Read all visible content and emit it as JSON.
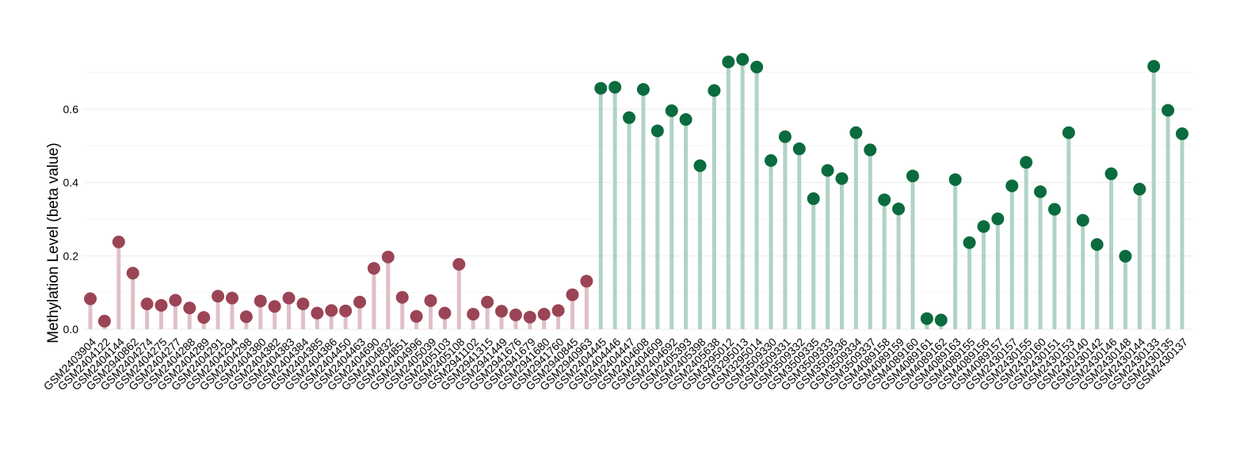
{
  "chart_data": {
    "type": "lollipop",
    "title": "",
    "xlabel": "",
    "ylabel": "Methylation Level (beta value)",
    "ylim": [
      0,
      0.78
    ],
    "yticks": [
      0.0,
      0.2,
      0.4,
      0.6
    ],
    "ytick_labels": [
      "0.0",
      "0.2",
      "0.4",
      "0.6"
    ],
    "grid": "horizontal",
    "legend": "none",
    "colors": {
      "group_a_point": "#9b4455",
      "group_a_stem": "#dfc0c7",
      "group_b_point": "#0a6b3e",
      "group_b_stem": "#b0d3c5"
    },
    "categories": [
      "GSM2403904",
      "GSM2404122",
      "GSM2404144",
      "GSM2940862",
      "GSM2404274",
      "GSM2404275",
      "GSM2404277",
      "GSM2404288",
      "GSM2404289",
      "GSM2404291",
      "GSM2404294",
      "GSM2404298",
      "GSM2404380",
      "GSM2404382",
      "GSM2404383",
      "GSM2404384",
      "GSM2404385",
      "GSM2404386",
      "GSM2404450",
      "GSM2404463",
      "GSM2404690",
      "GSM2404832",
      "GSM2404851",
      "GSM2404996",
      "GSM2405039",
      "GSM2405103",
      "GSM2405108",
      "GSM2941102",
      "GSM2941315",
      "GSM2941449",
      "GSM2941676",
      "GSM2941679",
      "GSM2941680",
      "GSM2941760",
      "GSM2940845",
      "GSM2940963",
      "GSM2404445",
      "GSM2404446",
      "GSM2404447",
      "GSM2404608",
      "GSM2404609",
      "GSM2404692",
      "GSM2405393",
      "GSM2405398",
      "GSM2405638",
      "GSM3295012",
      "GSM3295013",
      "GSM3295014",
      "GSM3509330",
      "GSM3509331",
      "GSM3509332",
      "GSM3509335",
      "GSM3509333",
      "GSM3509336",
      "GSM3509334",
      "GSM3509337",
      "GSM4089158",
      "GSM4089159",
      "GSM4089160",
      "GSM4089161",
      "GSM4089162",
      "GSM4089163",
      "GSM4089155",
      "GSM4089156",
      "GSM4089157",
      "GSM2430157",
      "GSM2430155",
      "GSM2430160",
      "GSM2430151",
      "GSM2430153",
      "GSM2430140",
      "GSM2430142",
      "GSM2430146",
      "GSM2430148",
      "GSM2430144",
      "GSM2430133",
      "GSM2430135",
      "GSM2430137"
    ],
    "groups": [
      "a",
      "a",
      "a",
      "a",
      "a",
      "a",
      "a",
      "a",
      "a",
      "a",
      "a",
      "a",
      "a",
      "a",
      "a",
      "a",
      "a",
      "a",
      "a",
      "a",
      "a",
      "a",
      "a",
      "a",
      "a",
      "a",
      "a",
      "a",
      "a",
      "a",
      "a",
      "a",
      "a",
      "a",
      "a",
      "a",
      "b",
      "b",
      "b",
      "b",
      "b",
      "b",
      "b",
      "b",
      "b",
      "b",
      "b",
      "b",
      "b",
      "b",
      "b",
      "b",
      "b",
      "b",
      "b",
      "b",
      "b",
      "b",
      "b",
      "b",
      "b",
      "b",
      "b",
      "b",
      "b",
      "b",
      "b",
      "b",
      "b",
      "b",
      "b",
      "b",
      "b",
      "b",
      "b",
      "b",
      "b",
      "b"
    ],
    "values": [
      0.083,
      0.022,
      0.238,
      0.153,
      0.069,
      0.065,
      0.079,
      0.058,
      0.032,
      0.09,
      0.085,
      0.034,
      0.077,
      0.062,
      0.085,
      0.069,
      0.044,
      0.051,
      0.05,
      0.074,
      0.166,
      0.197,
      0.087,
      0.035,
      0.078,
      0.044,
      0.177,
      0.041,
      0.074,
      0.049,
      0.039,
      0.033,
      0.041,
      0.051,
      0.094,
      0.131,
      0.657,
      0.66,
      0.577,
      0.654,
      0.541,
      0.596,
      0.572,
      0.446,
      0.651,
      0.729,
      0.736,
      0.715,
      0.46,
      0.525,
      0.492,
      0.356,
      0.433,
      0.411,
      0.536,
      0.489,
      0.353,
      0.328,
      0.418,
      0.029,
      0.025,
      0.408,
      0.236,
      0.28,
      0.301,
      0.391,
      0.455,
      0.375,
      0.327,
      0.536,
      0.297,
      0.231,
      0.424,
      0.199,
      0.382,
      0.717,
      0.597,
      0.533
    ]
  }
}
